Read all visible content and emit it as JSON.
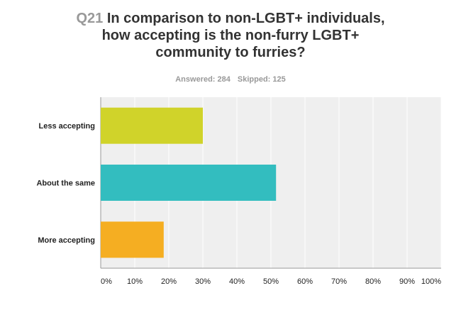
{
  "header": {
    "question_number": "Q21",
    "question_text": "In comparison to non-LGBT+ individuals, how accepting is the non-furry LGBT+ community to furries?",
    "answered_label": "Answered: 284",
    "skipped_label": "Skipped: 125"
  },
  "chart_data": {
    "type": "bar",
    "orientation": "horizontal",
    "categories": [
      "Less accepting",
      "About the same",
      "More accepting"
    ],
    "values": [
      30,
      51.5,
      18.5
    ],
    "value_unit": "%",
    "xlim": [
      0,
      100
    ],
    "x_ticks": [
      "0%",
      "10%",
      "20%",
      "30%",
      "40%",
      "50%",
      "60%",
      "70%",
      "80%",
      "90%",
      "100%"
    ],
    "grid": true,
    "colors": [
      "#d0d32a",
      "#33bdbf",
      "#f5ae22"
    ],
    "plot_background": "#efefef"
  }
}
